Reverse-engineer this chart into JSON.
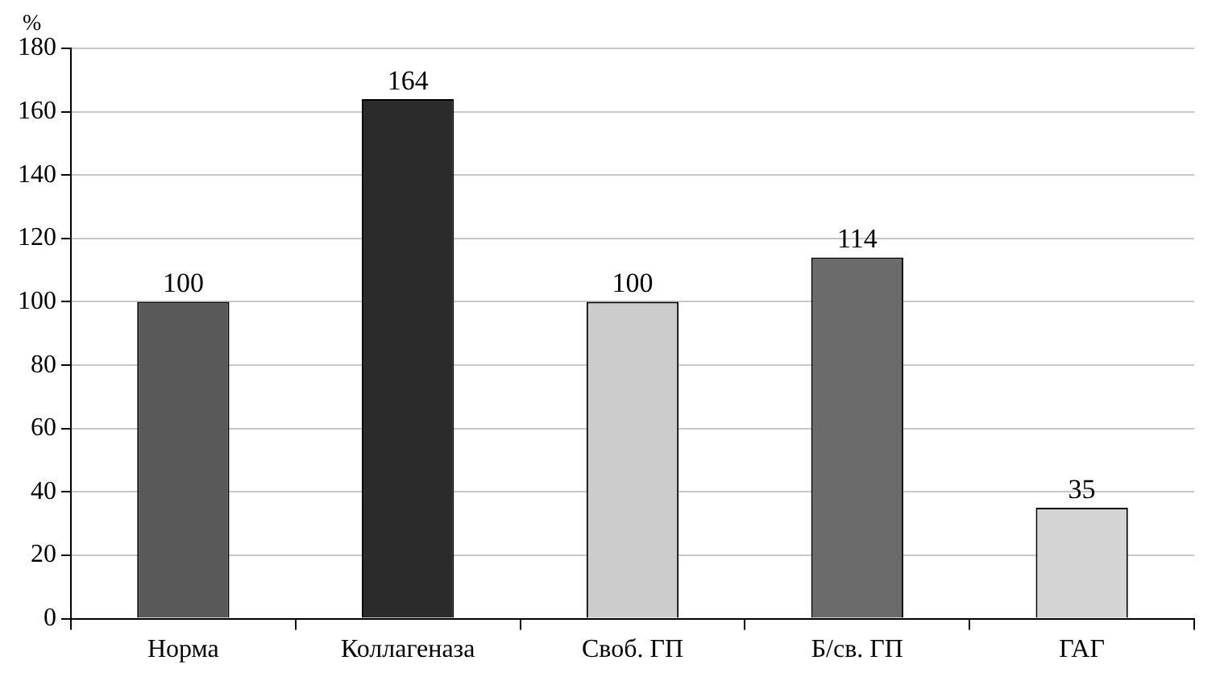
{
  "chart_data": {
    "type": "bar",
    "ylabel": "%",
    "categories": [
      "Норма",
      "Коллагеназа",
      "Своб. ГП",
      "Б/св. ГП",
      "ГАГ"
    ],
    "values": [
      100,
      164,
      100,
      114,
      35
    ],
    "colors": [
      "#595959",
      "#2b2b2b",
      "#cccccc",
      "#6b6b6b",
      "#d4d4d4"
    ],
    "ylim": [
      0,
      180
    ],
    "yticks": [
      0,
      20,
      40,
      60,
      80,
      100,
      120,
      140,
      160,
      180
    ],
    "grid": "y",
    "data_labels": true,
    "legend": false
  }
}
